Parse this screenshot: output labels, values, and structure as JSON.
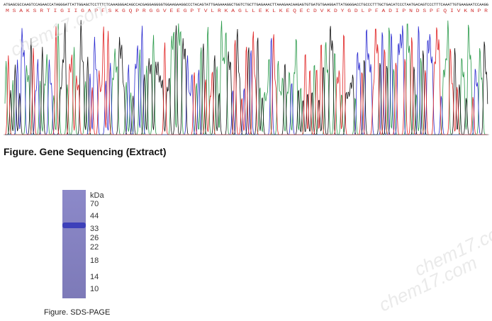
{
  "sequencing": {
    "dna": "ATGAGCGCCAAGTCCAGAACCATAGGGATTATTGGAGCTCCTTTCTCAAAGGGACAGCCACGAGGAGGGGTGGAAGAAGGCCCTACAGTATTGAGAAAGGCTGGTCTGCTTGAGAAACTTAAAGAACAAGAGTGTGATGTGAAGGATTATGGGGACCTGCCCTTTGCTGACATCCCTAATGACAGTCCCTTTCAAATTGTGAAGAATCCAAGG",
    "protein": "M S A K S R T I G I I G A P F S K G Q P R G G V E E G P T V L R K A G L L E K L K E Q E C D V K D Y G D L P F A D I P N D S P F Q I V K N P R",
    "caption": "Figure. Gene Sequencing (Extract)"
  },
  "gel": {
    "unit": "kDa",
    "markers": [
      70,
      44,
      33,
      26,
      22,
      18,
      14,
      10
    ],
    "caption": "Figure. SDS-PAGE"
  },
  "watermark": "chem17.com"
}
